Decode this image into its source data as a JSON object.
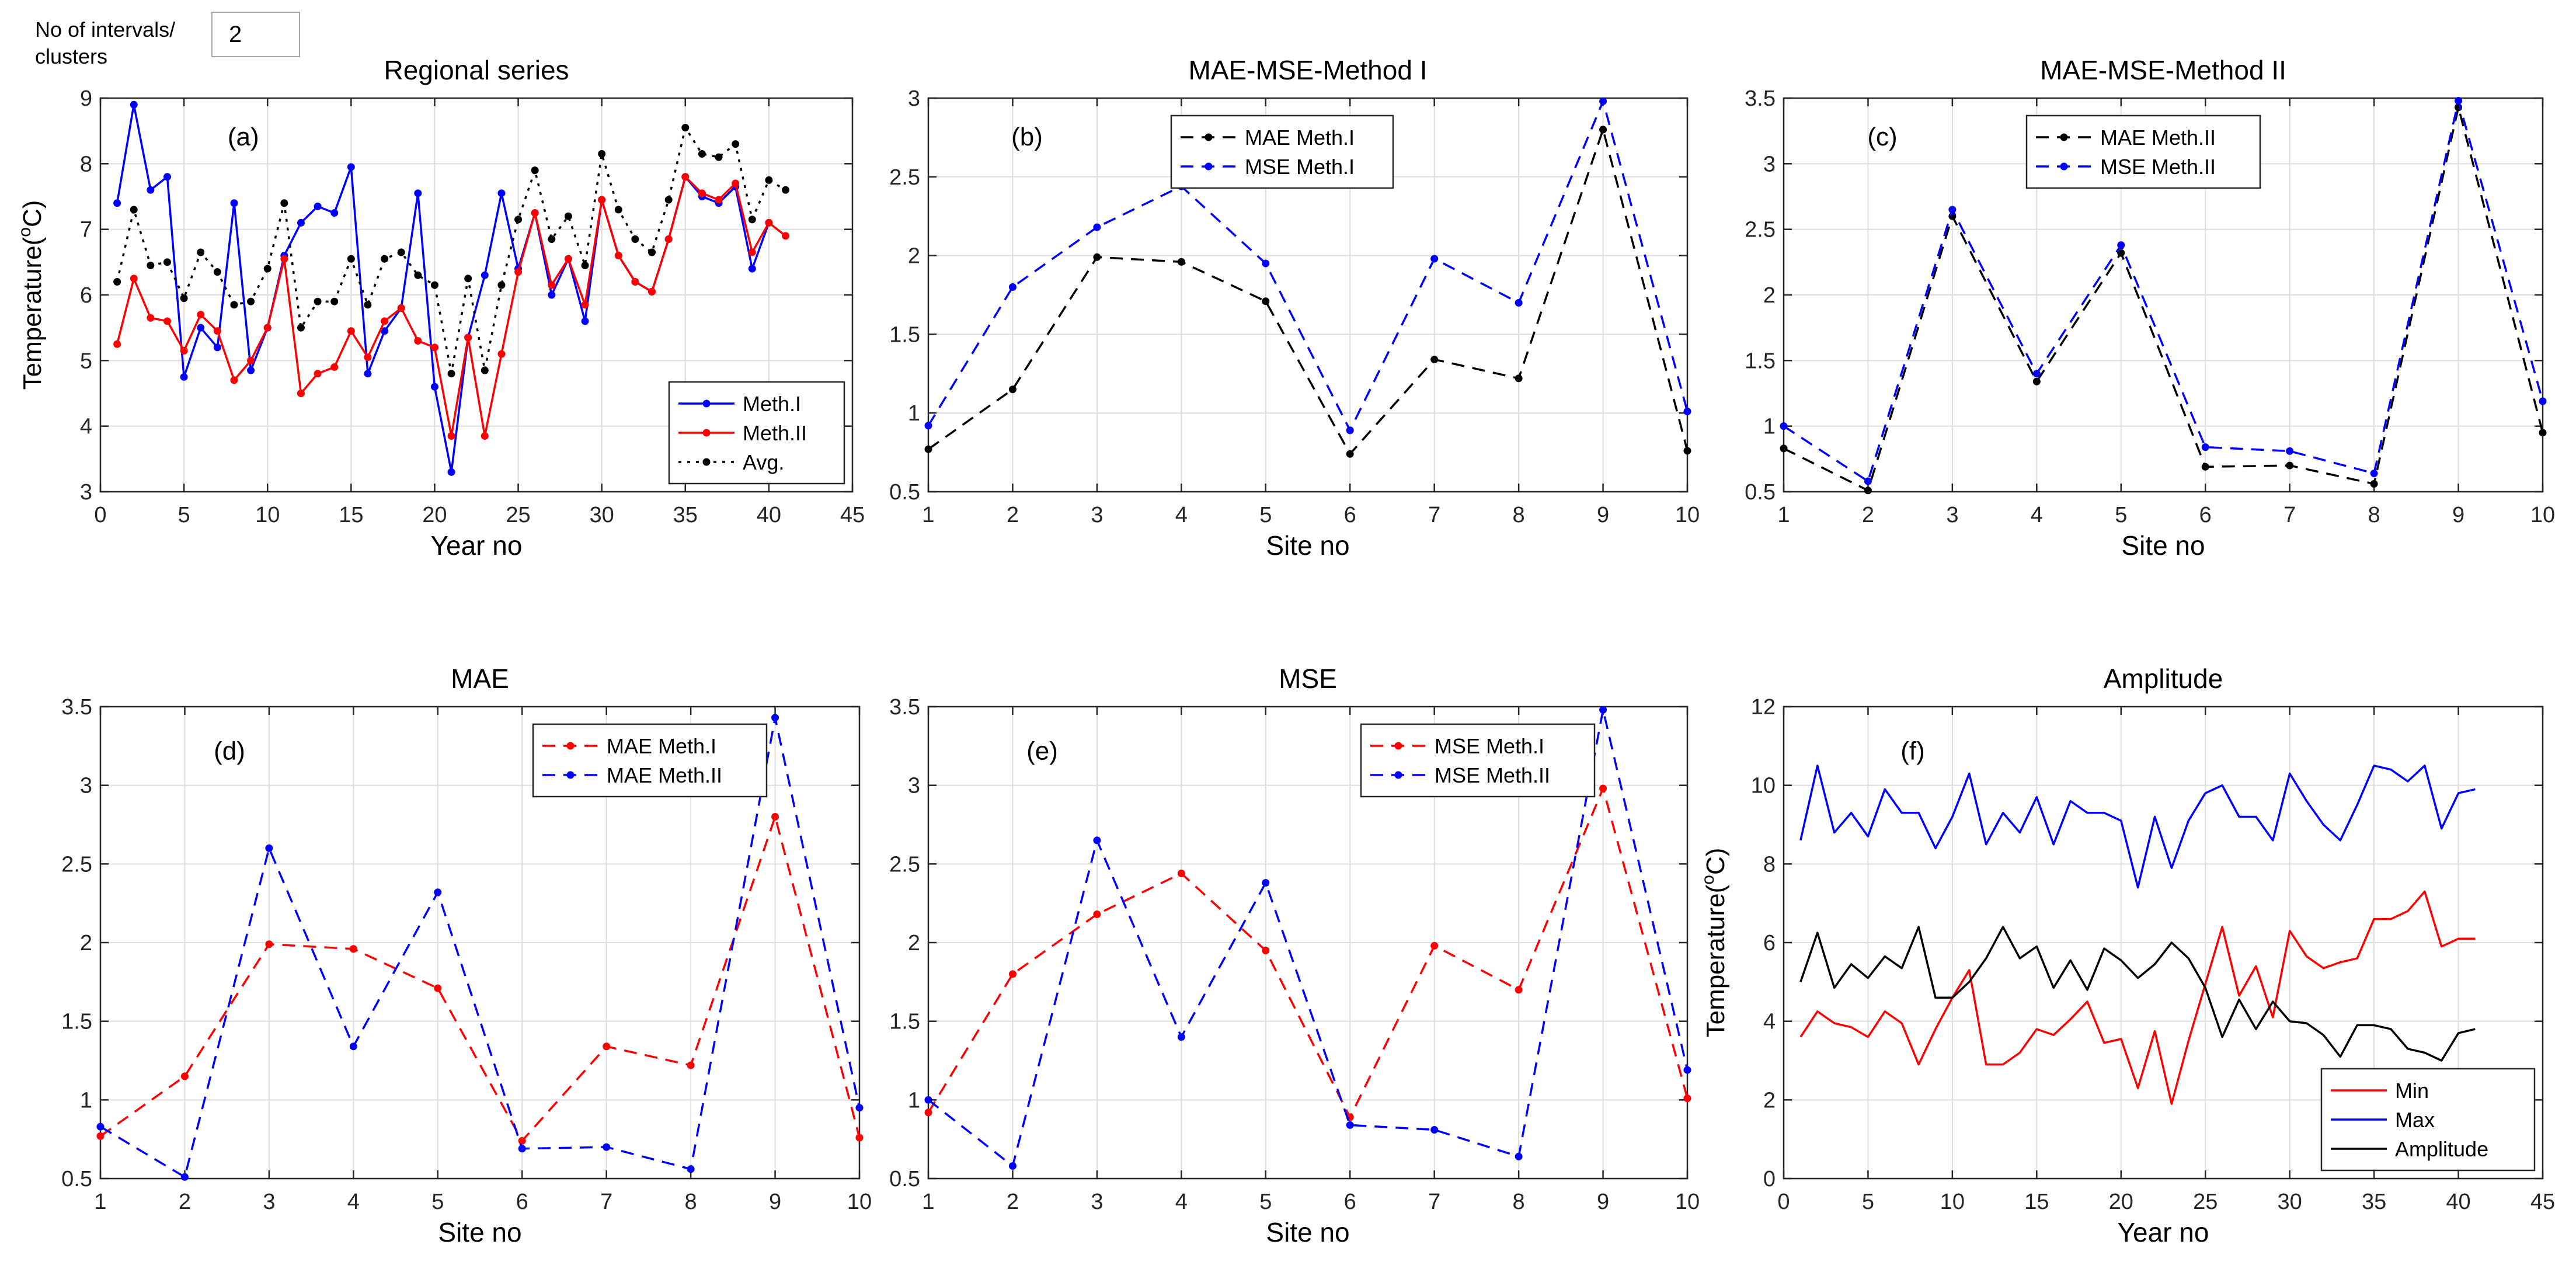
{
  "control": {
    "label": "No of intervals/\nclusters",
    "value": "2"
  },
  "chart_data": [
    {
      "id": "a",
      "type": "line",
      "title": "Regional series",
      "panel_label": "(a)",
      "xlabel": "Year no",
      "ylabel": "Temperature(°C)",
      "ylabel_parts": [
        "Temperature(",
        "o",
        "C)"
      ],
      "xlim": [
        0,
        45
      ],
      "ylim": [
        3,
        9
      ],
      "xticks": [
        0,
        5,
        10,
        15,
        20,
        25,
        30,
        35,
        40,
        45
      ],
      "yticks": [
        3,
        4,
        5,
        6,
        7,
        8,
        9
      ],
      "grid": true,
      "legend_position": "bottom-right",
      "x": [
        1,
        2,
        3,
        4,
        5,
        6,
        7,
        8,
        9,
        10,
        11,
        12,
        13,
        14,
        15,
        16,
        17,
        18,
        19,
        20,
        21,
        22,
        23,
        24,
        25,
        26,
        27,
        28,
        29,
        30,
        31,
        32,
        33,
        34,
        35,
        36,
        37,
        38,
        39,
        40,
        41
      ],
      "series": [
        {
          "name": "Meth.I",
          "color": "#0000ff",
          "dash": "solid",
          "marker": true,
          "values": [
            7.4,
            8.9,
            7.6,
            7.8,
            4.75,
            5.5,
            5.2,
            7.4,
            4.85,
            5.5,
            6.6,
            7.1,
            7.35,
            7.25,
            7.95,
            4.8,
            5.45,
            5.8,
            7.55,
            4.6,
            3.3,
            5.35,
            6.3,
            7.55,
            6.4,
            7.25,
            6.0,
            6.55,
            5.6,
            7.45,
            6.6,
            6.2,
            6.05,
            6.85,
            7.8,
            7.5,
            7.4,
            7.65,
            6.4,
            7.1,
            null
          ]
        },
        {
          "name": "Meth.II",
          "color": "#ff0000",
          "dash": "solid",
          "marker": true,
          "values": [
            5.25,
            6.25,
            5.65,
            5.6,
            5.15,
            5.7,
            5.45,
            4.7,
            5.0,
            5.5,
            6.55,
            4.5,
            4.8,
            4.9,
            5.45,
            5.05,
            5.6,
            5.8,
            5.3,
            5.2,
            3.85,
            5.35,
            3.85,
            5.1,
            6.35,
            7.25,
            6.15,
            6.55,
            5.85,
            7.45,
            6.6,
            6.2,
            6.05,
            6.85,
            7.8,
            7.55,
            7.45,
            7.7,
            6.65,
            7.1,
            6.9
          ]
        },
        {
          "name": "Avg.",
          "color": "#000000",
          "dash": "dotted",
          "marker": true,
          "values": [
            6.2,
            7.3,
            6.45,
            6.5,
            5.95,
            6.65,
            6.35,
            5.85,
            5.9,
            6.4,
            7.4,
            5.5,
            5.9,
            5.9,
            6.55,
            5.85,
            6.55,
            6.65,
            6.3,
            6.15,
            4.8,
            6.25,
            4.85,
            6.15,
            7.15,
            7.9,
            6.85,
            7.2,
            6.45,
            8.15,
            7.3,
            6.85,
            6.65,
            7.45,
            8.55,
            8.15,
            8.1,
            8.3,
            7.15,
            7.75,
            7.6
          ]
        }
      ]
    },
    {
      "id": "b",
      "type": "line",
      "title": "MAE-MSE-Method I",
      "panel_label": "(b)",
      "xlabel": "Site no",
      "ylabel": "",
      "xlim": [
        1,
        10
      ],
      "ylim": [
        0.5,
        3
      ],
      "xticks": [
        1,
        2,
        3,
        4,
        5,
        6,
        7,
        8,
        9,
        10
      ],
      "yticks": [
        0.5,
        1,
        1.5,
        2,
        2.5,
        3
      ],
      "grid": true,
      "legend_position": "top-right",
      "x": [
        1,
        2,
        3,
        4,
        5,
        6,
        7,
        8,
        9,
        10
      ],
      "series": [
        {
          "name": "MAE Meth.I",
          "color": "#000000",
          "dash": "dashed",
          "marker": true,
          "values": [
            0.77,
            1.15,
            1.99,
            1.96,
            1.71,
            0.74,
            1.34,
            1.22,
            2.8,
            0.76
          ]
        },
        {
          "name": "MSE Meth.I",
          "color": "#0000ff",
          "dash": "dashed",
          "marker": true,
          "values": [
            0.92,
            1.8,
            2.18,
            2.44,
            1.95,
            0.89,
            1.98,
            1.7,
            2.98,
            1.01
          ]
        }
      ]
    },
    {
      "id": "c",
      "type": "line",
      "title": "MAE-MSE-Method II",
      "panel_label": "(c)",
      "xlabel": "Site no",
      "ylabel": "",
      "xlim": [
        1,
        10
      ],
      "ylim": [
        0.5,
        3.5
      ],
      "xticks": [
        1,
        2,
        3,
        4,
        5,
        6,
        7,
        8,
        9,
        10
      ],
      "yticks": [
        0.5,
        1,
        1.5,
        2,
        2.5,
        3,
        3.5
      ],
      "grid": true,
      "legend_position": "top-right",
      "x": [
        1,
        2,
        3,
        4,
        5,
        6,
        7,
        8,
        9,
        10
      ],
      "series": [
        {
          "name": "MAE Meth.II",
          "color": "#000000",
          "dash": "dashed",
          "marker": true,
          "values": [
            0.83,
            0.51,
            2.6,
            1.34,
            2.32,
            0.69,
            0.7,
            0.56,
            3.43,
            0.95
          ]
        },
        {
          "name": "MSE Meth.II",
          "color": "#0000ff",
          "dash": "dashed",
          "marker": true,
          "values": [
            1.0,
            0.58,
            2.65,
            1.4,
            2.38,
            0.84,
            0.81,
            0.64,
            3.48,
            1.19
          ]
        }
      ]
    },
    {
      "id": "d",
      "type": "line",
      "title": "MAE",
      "panel_label": "(d)",
      "xlabel": "Site no",
      "ylabel": "",
      "xlim": [
        1,
        10
      ],
      "ylim": [
        0.5,
        3.5
      ],
      "xticks": [
        1,
        2,
        3,
        4,
        5,
        6,
        7,
        8,
        9,
        10
      ],
      "yticks": [
        0.5,
        1,
        1.5,
        2,
        2.5,
        3,
        3.5
      ],
      "grid": true,
      "legend_position": "top-center",
      "x": [
        1,
        2,
        3,
        4,
        5,
        6,
        7,
        8,
        9,
        10
      ],
      "series": [
        {
          "name": "MAE Meth.I",
          "color": "#ff0000",
          "dash": "dashed",
          "marker": true,
          "values": [
            0.77,
            1.15,
            1.99,
            1.96,
            1.71,
            0.74,
            1.34,
            1.22,
            2.8,
            0.76
          ]
        },
        {
          "name": "MAE Meth.II",
          "color": "#0000ff",
          "dash": "dashed",
          "marker": true,
          "values": [
            0.83,
            0.51,
            2.6,
            1.34,
            2.32,
            0.69,
            0.7,
            0.56,
            3.43,
            0.95
          ]
        }
      ]
    },
    {
      "id": "e",
      "type": "line",
      "title": "MSE",
      "panel_label": "(e)",
      "xlabel": "Site no",
      "ylabel": "",
      "xlim": [
        1,
        10
      ],
      "ylim": [
        0.5,
        3.5
      ],
      "xticks": [
        1,
        2,
        3,
        4,
        5,
        6,
        7,
        8,
        9,
        10
      ],
      "yticks": [
        0.5,
        1,
        1.5,
        2,
        2.5,
        3,
        3.5
      ],
      "grid": true,
      "legend_position": "top-center",
      "x": [
        1,
        2,
        3,
        4,
        5,
        6,
        7,
        8,
        9,
        10
      ],
      "series": [
        {
          "name": "MSE Meth.I",
          "color": "#ff0000",
          "dash": "dashed",
          "marker": true,
          "values": [
            0.92,
            1.8,
            2.18,
            2.44,
            1.95,
            0.89,
            1.98,
            1.7,
            2.98,
            1.01
          ]
        },
        {
          "name": "MSE Meth.II",
          "color": "#0000ff",
          "dash": "dashed",
          "marker": true,
          "values": [
            1.0,
            0.58,
            2.65,
            1.4,
            2.38,
            0.84,
            0.81,
            0.64,
            3.48,
            1.19
          ]
        }
      ]
    },
    {
      "id": "f",
      "type": "line",
      "title": "Amplitude",
      "panel_label": "(f)",
      "xlabel": "Year no",
      "ylabel": "Temperature(°C)",
      "ylabel_parts": [
        "Temperature(",
        "o",
        "C)"
      ],
      "xlim": [
        0,
        45
      ],
      "ylim": [
        0,
        12
      ],
      "xticks": [
        0,
        5,
        10,
        15,
        20,
        25,
        30,
        35,
        40,
        45
      ],
      "yticks": [
        0,
        2,
        4,
        6,
        8,
        10,
        12
      ],
      "grid": true,
      "legend_position": "bottom-right",
      "x": [
        1,
        2,
        3,
        4,
        5,
        6,
        7,
        8,
        9,
        10,
        11,
        12,
        13,
        14,
        15,
        16,
        17,
        18,
        19,
        20,
        21,
        22,
        23,
        24,
        25,
        26,
        27,
        28,
        29,
        30,
        31,
        32,
        33,
        34,
        35,
        36,
        37,
        38,
        39,
        40,
        41
      ],
      "series": [
        {
          "name": "Min",
          "color": "#ff0000",
          "dash": "solid",
          "marker": false,
          "values": [
            3.6,
            4.25,
            3.95,
            3.85,
            3.6,
            4.25,
            3.95,
            2.9,
            3.8,
            4.6,
            5.3,
            2.9,
            2.9,
            3.2,
            3.8,
            3.65,
            4.05,
            4.5,
            3.45,
            3.55,
            2.3,
            3.75,
            1.9,
            3.5,
            4.95,
            6.4,
            4.65,
            5.4,
            4.1,
            6.3,
            5.65,
            5.35,
            5.5,
            5.6,
            6.6,
            6.6,
            6.8,
            7.3,
            5.9,
            6.1,
            6.1
          ]
        },
        {
          "name": "Max",
          "color": "#0000ff",
          "dash": "solid",
          "marker": false,
          "values": [
            8.6,
            10.5,
            8.8,
            9.3,
            8.7,
            9.9,
            9.3,
            9.3,
            8.4,
            9.2,
            10.3,
            8.5,
            9.3,
            8.8,
            9.7,
            8.5,
            9.6,
            9.3,
            9.3,
            9.1,
            7.4,
            9.2,
            7.9,
            9.1,
            9.8,
            10.0,
            9.2,
            9.2,
            8.6,
            10.3,
            9.6,
            9.0,
            8.6,
            9.5,
            10.5,
            10.4,
            10.1,
            10.5,
            8.9,
            9.8,
            9.9
          ]
        },
        {
          "name": "Amplitude",
          "color": "#000000",
          "dash": "solid",
          "marker": false,
          "values": [
            5.0,
            6.25,
            4.85,
            5.45,
            5.1,
            5.65,
            5.35,
            6.4,
            4.6,
            4.6,
            5.0,
            5.6,
            6.4,
            5.6,
            5.9,
            4.85,
            5.55,
            4.8,
            5.85,
            5.55,
            5.1,
            5.45,
            6.0,
            5.6,
            4.85,
            3.6,
            4.55,
            3.8,
            4.5,
            4.0,
            3.95,
            3.65,
            3.1,
            3.9,
            3.9,
            3.8,
            3.3,
            3.2,
            3.0,
            3.7,
            3.8
          ]
        }
      ]
    }
  ]
}
